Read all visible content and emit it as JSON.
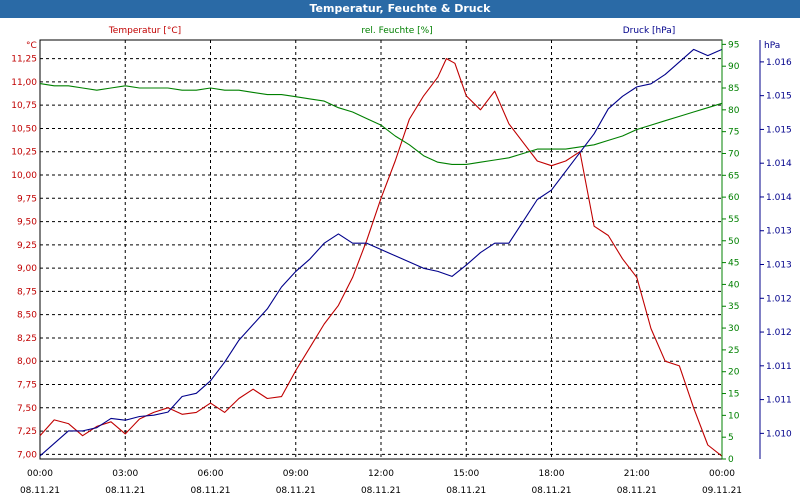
{
  "window": {
    "title": "Temperatur, Feuchte & Druck"
  },
  "chart_data": {
    "type": "line",
    "title": "Temperatur, Feuchte & Druck",
    "colors": {
      "temperature": "#c00000",
      "humidity": "#008000",
      "pressure": "#00008b",
      "grid": "#000000"
    },
    "grid": true,
    "x_ticks": [
      {
        "time": "00:00",
        "date": "08.11.21",
        "hours": 0
      },
      {
        "time": "03:00",
        "date": "08.11.21",
        "hours": 3
      },
      {
        "time": "06:00",
        "date": "08.11.21",
        "hours": 6
      },
      {
        "time": "09:00",
        "date": "08.11.21",
        "hours": 9
      },
      {
        "time": "12:00",
        "date": "08.11.21",
        "hours": 12
      },
      {
        "time": "15:00",
        "date": "08.11.21",
        "hours": 15
      },
      {
        "time": "18:00",
        "date": "08.11.21",
        "hours": 18
      },
      {
        "time": "21:00",
        "date": "08.11.21",
        "hours": 21
      },
      {
        "time": "00:00",
        "date": "09.11.21",
        "hours": 24
      }
    ],
    "xlim_hours": [
      0,
      24
    ],
    "axes": {
      "temperature": {
        "label": "Temperatur [°C]",
        "unit": "°C",
        "ylim": [
          6.95,
          11.45
        ],
        "ticks": [
          "11,25",
          "11,00",
          "10,75",
          "10,50",
          "10,25",
          "10,00",
          "9,75",
          "9,50",
          "9,25",
          "9,00",
          "8,75",
          "8,50",
          "8,25",
          "8,00",
          "7,75",
          "7,50",
          "7,25",
          "7,00"
        ]
      },
      "humidity": {
        "label": "rel. Feuchte [%]",
        "unit": "%",
        "ylim": [
          0,
          96
        ],
        "ticks": [
          "95",
          "90",
          "85",
          "80",
          "75",
          "70",
          "65",
          "60",
          "55",
          "50",
          "45",
          "40",
          "35",
          "30",
          "25",
          "20",
          "15",
          "10",
          "5",
          "0"
        ]
      },
      "pressure": {
        "label": "Druck [hPa]",
        "unit": "hPa",
        "ylim": [
          1009.6,
          1016.3
        ],
        "ticks": [
          "1.016",
          "1.015",
          "1.015",
          "1.014",
          "1.014",
          "1.013",
          "1.013",
          "1.012",
          "1.012",
          "1.011",
          "1.011",
          "1.010"
        ]
      }
    },
    "series": [
      {
        "name": "Temperatur [°C]",
        "axis": "temperature",
        "x": [
          0,
          0.5,
          1,
          1.5,
          2,
          2.5,
          3,
          3.5,
          4,
          4.5,
          5,
          5.5,
          6,
          6.5,
          7,
          7.5,
          8,
          8.5,
          9,
          9.5,
          10,
          10.5,
          11,
          11.5,
          12,
          12.5,
          13,
          13.5,
          14,
          14.3,
          14.6,
          15,
          15.5,
          16,
          16.5,
          17,
          17.5,
          18,
          18.5,
          19,
          19.5,
          20,
          20.5,
          21,
          21.5,
          22,
          22.5,
          23,
          23.5,
          24
        ],
        "values": [
          7.2,
          7.37,
          7.33,
          7.2,
          7.3,
          7.35,
          7.22,
          7.38,
          7.45,
          7.5,
          7.43,
          7.45,
          7.55,
          7.45,
          7.6,
          7.7,
          7.6,
          7.62,
          7.9,
          8.15,
          8.4,
          8.6,
          8.9,
          9.3,
          9.75,
          10.15,
          10.6,
          10.85,
          11.05,
          11.25,
          11.2,
          10.85,
          10.7,
          10.9,
          10.55,
          10.35,
          10.15,
          10.1,
          10.15,
          10.25,
          9.45,
          9.35,
          9.1,
          8.9,
          8.35,
          8.0,
          7.95,
          7.5,
          7.1,
          6.98
        ]
      },
      {
        "name": "rel. Feuchte [%]",
        "axis": "humidity",
        "x": [
          0,
          0.5,
          1,
          1.5,
          2,
          2.5,
          3,
          3.5,
          4,
          4.5,
          5,
          5.5,
          6,
          6.5,
          7,
          7.5,
          8,
          8.5,
          9,
          9.5,
          10,
          10.5,
          11,
          11.5,
          12,
          12.5,
          13,
          13.5,
          14,
          14.5,
          15,
          15.5,
          16,
          16.5,
          17,
          17.5,
          18,
          18.5,
          19,
          19.5,
          20,
          20.5,
          21,
          21.5,
          22,
          22.5,
          23,
          23.5,
          24
        ],
        "values": [
          86,
          85.5,
          85.5,
          85,
          84.5,
          85,
          85.5,
          85,
          85,
          85,
          84.5,
          84.5,
          85,
          84.5,
          84.5,
          84,
          83.5,
          83.5,
          83,
          82.5,
          82,
          80.5,
          79.5,
          78,
          76.5,
          74,
          72,
          69.5,
          68,
          67.5,
          67.5,
          68,
          68.5,
          69,
          70,
          71,
          71,
          71,
          71.5,
          72,
          73,
          74,
          75.5,
          76.5,
          77.5,
          78.5,
          79.5,
          80.5,
          81.5
        ]
      },
      {
        "name": "Druck [hPa]",
        "axis": "pressure",
        "x": [
          0,
          0.5,
          1,
          1.5,
          2,
          2.5,
          3,
          3.5,
          4,
          4.5,
          5,
          5.5,
          6,
          6.5,
          7,
          7.5,
          8,
          8.5,
          9,
          9.5,
          10,
          10.5,
          11,
          11.5,
          12,
          12.5,
          13,
          13.5,
          14,
          14.5,
          15,
          15.5,
          16,
          16.5,
          17,
          17.5,
          18,
          18.5,
          19,
          19.5,
          20,
          20.5,
          21,
          21.5,
          22,
          22.5,
          23,
          23.5,
          24
        ],
        "values": [
          1009.65,
          1009.85,
          1010.05,
          1010.05,
          1010.1,
          1010.25,
          1010.22,
          1010.28,
          1010.3,
          1010.35,
          1010.6,
          1010.65,
          1010.85,
          1011.15,
          1011.5,
          1011.75,
          1012.0,
          1012.35,
          1012.6,
          1012.8,
          1013.05,
          1013.2,
          1013.05,
          1013.05,
          1012.95,
          1012.85,
          1012.75,
          1012.65,
          1012.6,
          1012.52,
          1012.7,
          1012.9,
          1013.05,
          1013.05,
          1013.4,
          1013.75,
          1013.9,
          1014.2,
          1014.5,
          1014.8,
          1015.2,
          1015.4,
          1015.55,
          1015.6,
          1015.75,
          1015.95,
          1016.15,
          1016.05,
          1016.15
        ]
      }
    ]
  }
}
